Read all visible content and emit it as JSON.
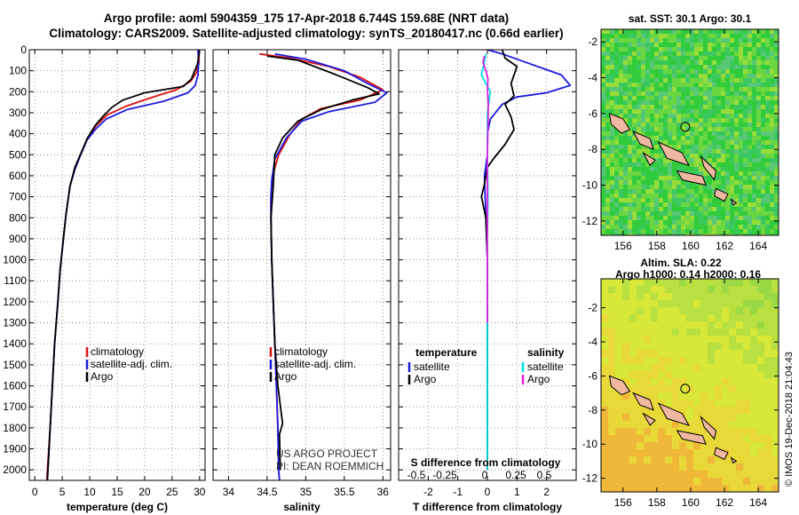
{
  "header": {
    "line1": "Argo profile: aoml 5904359_175 17-Apr-2018 6.744S 159.68E (NRT data)",
    "line2": "Climatology: CARS2009. Satellite-adjusted climatology: synTS_20180417.nc (0.66d earlier)"
  },
  "credit": "IMOS 19-Dec-2018 21:04:43",
  "colors": {
    "climatology": "#e01010",
    "satellite": "#1a1ae0",
    "argo": "#000000",
    "sal_satellite": "#00e0e0",
    "sal_argo": "#e020e0",
    "land": "#f0b8a0"
  },
  "chart_data": [
    {
      "type": "line",
      "name": "temperature-profile",
      "xlabel": "temperature (deg C)",
      "ylabel": "",
      "xlim": [
        -1,
        31
      ],
      "ylim": [
        2050,
        0
      ],
      "xticks": [
        0,
        5,
        10,
        15,
        20,
        25,
        30
      ],
      "yticks": [
        0,
        100,
        200,
        300,
        400,
        500,
        600,
        700,
        800,
        900,
        1000,
        1100,
        1200,
        1300,
        1400,
        1500,
        1600,
        1700,
        1800,
        1900,
        2000
      ],
      "grid": true,
      "legend": {
        "position": "lower-center",
        "entries": [
          "climatology",
          "satellite-adj. clim.",
          "Argo"
        ]
      },
      "series": [
        {
          "name": "climatology",
          "color": "#e01010",
          "points": [
            [
              29.9,
              0
            ],
            [
              29.9,
              60
            ],
            [
              29.4,
              110
            ],
            [
              28.4,
              150
            ],
            [
              25.8,
              190
            ],
            [
              21.0,
              230
            ],
            [
              16.5,
              270
            ],
            [
              13.2,
              310
            ],
            [
              11.2,
              360
            ],
            [
              9.6,
              420
            ],
            [
              8.3,
              500
            ],
            [
              7.3,
              560
            ],
            [
              6.4,
              650
            ],
            [
              5.7,
              780
            ],
            [
              5.2,
              900
            ],
            [
              4.6,
              1050
            ],
            [
              4.2,
              1200
            ],
            [
              3.6,
              1400
            ],
            [
              3.2,
              1600
            ],
            [
              2.8,
              1800
            ],
            [
              2.3,
              2000
            ],
            [
              2.2,
              2050
            ]
          ]
        },
        {
          "name": "satellite-adj. clim.",
          "color": "#1a1ae0",
          "points": [
            [
              29.7,
              0
            ],
            [
              29.8,
              60
            ],
            [
              29.7,
              120
            ],
            [
              29.2,
              170
            ],
            [
              27.9,
              205
            ],
            [
              23.5,
              245
            ],
            [
              16.8,
              285
            ],
            [
              13.0,
              330
            ],
            [
              11.0,
              380
            ],
            [
              9.5,
              430
            ],
            [
              8.2,
              510
            ],
            [
              7.3,
              570
            ],
            [
              6.4,
              650
            ],
            [
              5.7,
              780
            ],
            [
              5.2,
              900
            ],
            [
              4.6,
              1050
            ],
            [
              4.2,
              1200
            ],
            [
              3.6,
              1400
            ],
            [
              3.2,
              1600
            ],
            [
              2.8,
              1800
            ],
            [
              2.4,
              2000
            ],
            [
              2.3,
              2050
            ]
          ]
        },
        {
          "name": "Argo",
          "color": "#000000",
          "points": [
            [
              30.0,
              5
            ],
            [
              29.6,
              70
            ],
            [
              28.5,
              140
            ],
            [
              27.0,
              175
            ],
            [
              20.0,
              205
            ],
            [
              16.0,
              240
            ],
            [
              14.0,
              275
            ],
            [
              12.5,
              315
            ],
            [
              11.0,
              360
            ],
            [
              9.6,
              420
            ],
            [
              8.3,
              500
            ],
            [
              7.3,
              560
            ],
            [
              6.4,
              650
            ],
            [
              5.7,
              780
            ],
            [
              5.2,
              900
            ],
            [
              4.6,
              1050
            ],
            [
              4.2,
              1200
            ],
            [
              3.6,
              1400
            ],
            [
              3.2,
              1600
            ],
            [
              2.8,
              1800
            ],
            [
              2.4,
              2000
            ],
            [
              2.3,
              2050
            ]
          ]
        }
      ]
    },
    {
      "type": "line",
      "name": "salinity-profile",
      "xlabel": "salinity",
      "ylabel": "",
      "xlim": [
        33.8,
        36.1
      ],
      "ylim": [
        2050,
        0
      ],
      "xticks": [
        34,
        34.5,
        35,
        35.5,
        36
      ],
      "grid": true,
      "annotations": [
        "US ARGO PROJECT",
        "PI: DEAN ROEMMICH"
      ],
      "legend": {
        "position": "lower-center",
        "entries": [
          "climatology",
          "satellite-adj. clim.",
          "Argo"
        ]
      },
      "series": [
        {
          "name": "climatology",
          "color": "#e01010",
          "points": [
            [
              34.4,
              20
            ],
            [
              34.8,
              40
            ],
            [
              35.3,
              80
            ],
            [
              35.7,
              130
            ],
            [
              36.0,
              190
            ],
            [
              35.7,
              240
            ],
            [
              35.2,
              280
            ],
            [
              34.95,
              330
            ],
            [
              34.8,
              400
            ],
            [
              34.65,
              500
            ],
            [
              34.57,
              600
            ],
            [
              34.55,
              700
            ],
            [
              34.55,
              800
            ],
            [
              34.56,
              1000
            ],
            [
              34.58,
              1200
            ],
            [
              34.6,
              1400
            ],
            [
              34.62,
              1600
            ],
            [
              34.64,
              1800
            ],
            [
              34.65,
              2000
            ],
            [
              34.66,
              2050
            ]
          ]
        },
        {
          "name": "satellite-adj. clim.",
          "color": "#1a1ae0",
          "points": [
            [
              34.6,
              20
            ],
            [
              35.0,
              45
            ],
            [
              35.5,
              100
            ],
            [
              35.8,
              160
            ],
            [
              36.05,
              205
            ],
            [
              35.9,
              250
            ],
            [
              35.3,
              295
            ],
            [
              34.95,
              340
            ],
            [
              34.75,
              420
            ],
            [
              34.6,
              520
            ],
            [
              34.56,
              620
            ],
            [
              34.55,
              700
            ],
            [
              34.55,
              800
            ],
            [
              34.56,
              1000
            ],
            [
              34.58,
              1200
            ],
            [
              34.6,
              1400
            ],
            [
              34.62,
              1600
            ],
            [
              34.64,
              1800
            ],
            [
              34.65,
              2000
            ],
            [
              34.66,
              2050
            ]
          ]
        },
        {
          "name": "Argo",
          "color": "#000000",
          "points": [
            [
              34.5,
              30
            ],
            [
              34.9,
              50
            ],
            [
              35.4,
              120
            ],
            [
              35.8,
              180
            ],
            [
              35.95,
              210
            ],
            [
              35.6,
              240
            ],
            [
              35.2,
              285
            ],
            [
              34.9,
              340
            ],
            [
              34.7,
              420
            ],
            [
              34.6,
              500
            ],
            [
              34.58,
              650
            ],
            [
              34.55,
              800
            ],
            [
              34.56,
              1000
            ],
            [
              34.58,
              1200
            ],
            [
              34.6,
              1400
            ],
            [
              34.64,
              1600
            ],
            [
              34.7,
              1780
            ],
            [
              34.66,
              1830
            ],
            [
              34.67,
              2000
            ]
          ]
        }
      ]
    },
    {
      "type": "line",
      "name": "difference-profile",
      "xlabel": "T difference from climatology",
      "xlabel2": "S difference from climatology",
      "ylabel": "",
      "xlim": [
        -3,
        3
      ],
      "ylim": [
        2050,
        0
      ],
      "xticks": [
        -2,
        -1,
        0,
        1,
        2
      ],
      "xticks_secondary": [
        "-0.5",
        "-0.25",
        "0",
        "0.25",
        "0.5"
      ],
      "grid": true,
      "legend": {
        "position": "lower",
        "temperature": [
          "satellite",
          "Argo"
        ],
        "salinity": [
          "satellite",
          "Argo"
        ],
        "headers": [
          "temperature",
          "salinity"
        ]
      },
      "series": [
        {
          "name": "T satellite",
          "color": "#1a1ae0",
          "points": [
            [
              0,
              0
            ],
            [
              0.5,
              20
            ],
            [
              1.3,
              60
            ],
            [
              2.5,
              120
            ],
            [
              2.8,
              170
            ],
            [
              2.0,
              205
            ],
            [
              1.0,
              225
            ],
            [
              0.5,
              260
            ],
            [
              0.1,
              330
            ],
            [
              0.0,
              400
            ],
            [
              0.0,
              500
            ],
            [
              -0.1,
              600
            ],
            [
              -0.05,
              800
            ],
            [
              0.0,
              1000
            ],
            [
              0.0,
              1200
            ],
            [
              0.0,
              1400
            ],
            [
              0.0,
              1600
            ],
            [
              0.0,
              1800
            ],
            [
              0.0,
              2000
            ]
          ]
        },
        {
          "name": "T Argo",
          "color": "#000000",
          "points": [
            [
              0.5,
              0
            ],
            [
              0.6,
              40
            ],
            [
              1.0,
              80
            ],
            [
              0.8,
              160
            ],
            [
              0.9,
              220
            ],
            [
              0.6,
              260
            ],
            [
              0.8,
              320
            ],
            [
              0.9,
              380
            ],
            [
              0.6,
              450
            ],
            [
              0.2,
              520
            ],
            [
              0.0,
              560
            ],
            [
              -0.1,
              640
            ],
            [
              -0.2,
              700
            ],
            [
              -0.05,
              800
            ],
            [
              0.0,
              1000
            ],
            [
              0.0,
              1200
            ],
            [
              0.0,
              1400
            ],
            [
              0.0,
              1600
            ],
            [
              0.0,
              1800
            ],
            [
              0.0,
              2000
            ]
          ]
        },
        {
          "name": "S satellite",
          "color": "#00e0e0",
          "points": [
            [
              -0.05,
              20
            ],
            [
              -0.12,
              70
            ],
            [
              -0.2,
              120
            ],
            [
              -0.05,
              160
            ],
            [
              0.1,
              200
            ],
            [
              0.0,
              300
            ],
            [
              0.0,
              500
            ],
            [
              0.02,
              700
            ],
            [
              0.0,
              900
            ],
            [
              0.0,
              1100
            ],
            [
              0.0,
              1300
            ],
            [
              0.0,
              1500
            ],
            [
              0.0,
              1700
            ],
            [
              0.0,
              1900
            ],
            [
              0.0,
              2000
            ]
          ]
        },
        {
          "name": "S Argo",
          "color": "#e020e0",
          "points": [
            [
              -0.1,
              30
            ],
            [
              -0.15,
              60
            ],
            [
              -0.05,
              100
            ],
            [
              0.02,
              140
            ],
            [
              0.0,
              190
            ],
            [
              0.03,
              260
            ],
            [
              0.02,
              360
            ],
            [
              0.0,
              500
            ],
            [
              0.0,
              700
            ],
            [
              0.0,
              900
            ],
            [
              0.0,
              1100
            ],
            [
              0.0,
              1300
            ]
          ]
        }
      ]
    },
    {
      "type": "heatmap",
      "name": "sst-map",
      "title": "sat. SST: 30.1  Argo: 30.1",
      "xlim": [
        154.7,
        165.2
      ],
      "ylim": [
        -12.8,
        -1.3
      ],
      "xticks": [
        156,
        158,
        160,
        162,
        164
      ],
      "yticks": [
        -2,
        -4,
        -6,
        -8,
        -10,
        -12
      ],
      "float_position": [
        159.68,
        -6.744
      ]
    },
    {
      "type": "heatmap",
      "name": "sla-map",
      "title": "Altim. SLA: 0.22",
      "subtitle": "Argo h1000: 0.14 h2000: 0.16",
      "xlim": [
        154.7,
        165.2
      ],
      "ylim": [
        -12.8,
        -0.3
      ],
      "xticks": [
        156,
        158,
        160,
        162,
        164
      ],
      "yticks": [
        -2,
        -4,
        -6,
        -8,
        -10,
        -12
      ],
      "float_position": [
        159.68,
        -6.744
      ]
    }
  ]
}
